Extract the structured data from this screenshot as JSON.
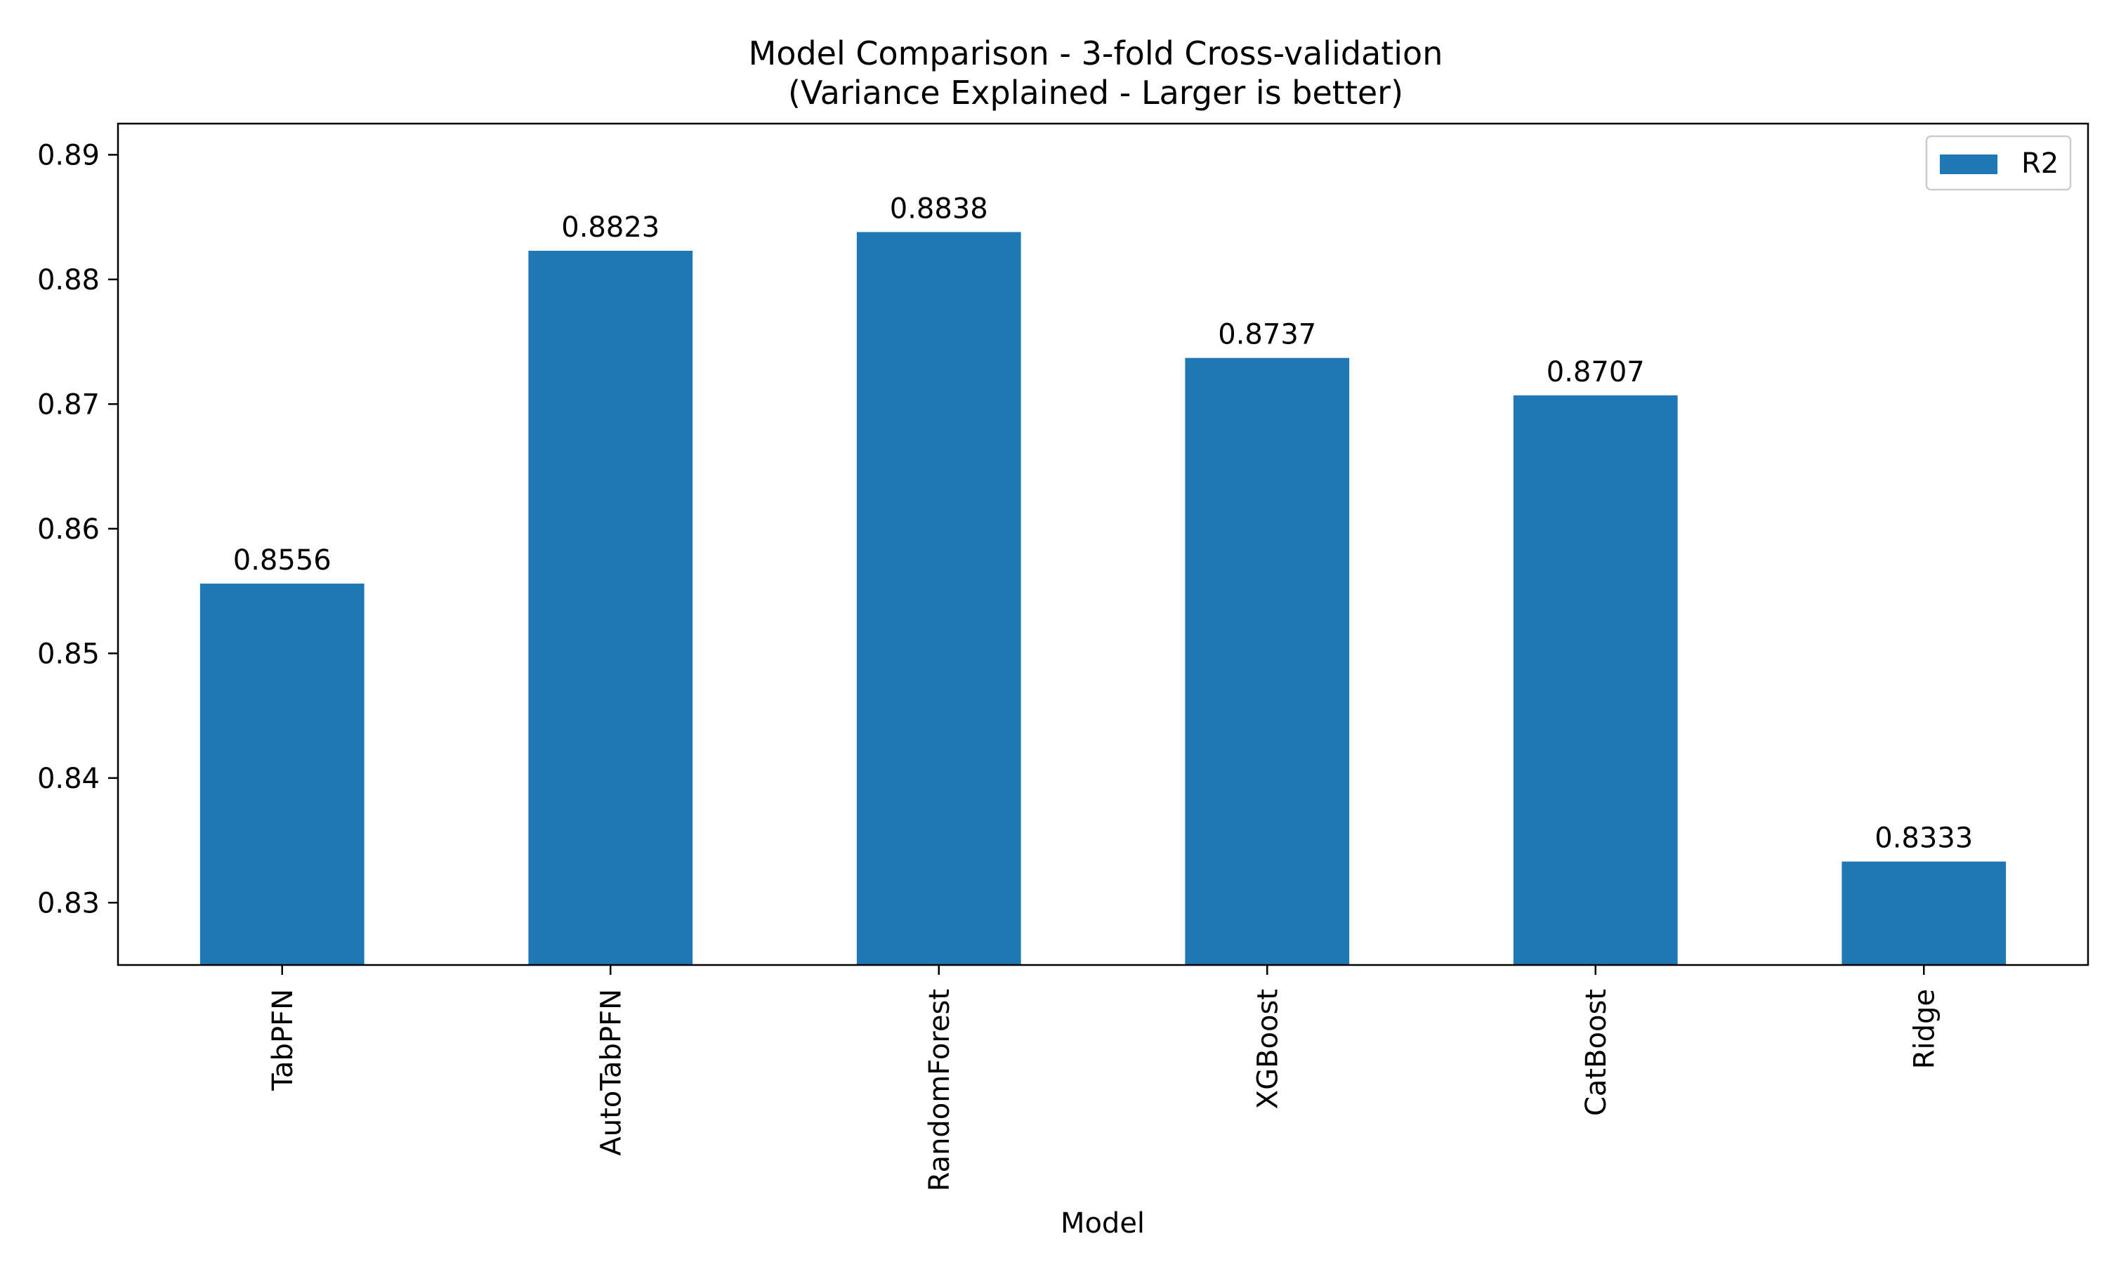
{
  "chart_data": {
    "type": "bar",
    "title": "Model Comparison - 3-fold Cross-validation",
    "subtitle": "(Variance Explained - Larger is better)",
    "xlabel": "Model",
    "ylabel": "",
    "categories": [
      "TabPFN",
      "AutoTabPFN",
      "RandomForest",
      "XGBoost",
      "CatBoost",
      "Ridge"
    ],
    "series": [
      {
        "name": "R2",
        "values": [
          0.8556,
          0.8823,
          0.8838,
          0.8737,
          0.8707,
          0.8333
        ],
        "color": "#1f77b4"
      }
    ],
    "data_labels": [
      "0.8556",
      "0.8823",
      "0.8838",
      "0.8737",
      "0.8707",
      "0.8333"
    ],
    "ylim": [
      0.825,
      0.8925
    ],
    "yticks": [
      0.83,
      0.84,
      0.85,
      0.86,
      0.87,
      0.88,
      0.89
    ],
    "ytick_labels": [
      "0.83",
      "0.84",
      "0.85",
      "0.86",
      "0.87",
      "0.88",
      "0.89"
    ],
    "x_tick_rotation": "vertical",
    "grid": false,
    "legend_position": "top-right"
  }
}
